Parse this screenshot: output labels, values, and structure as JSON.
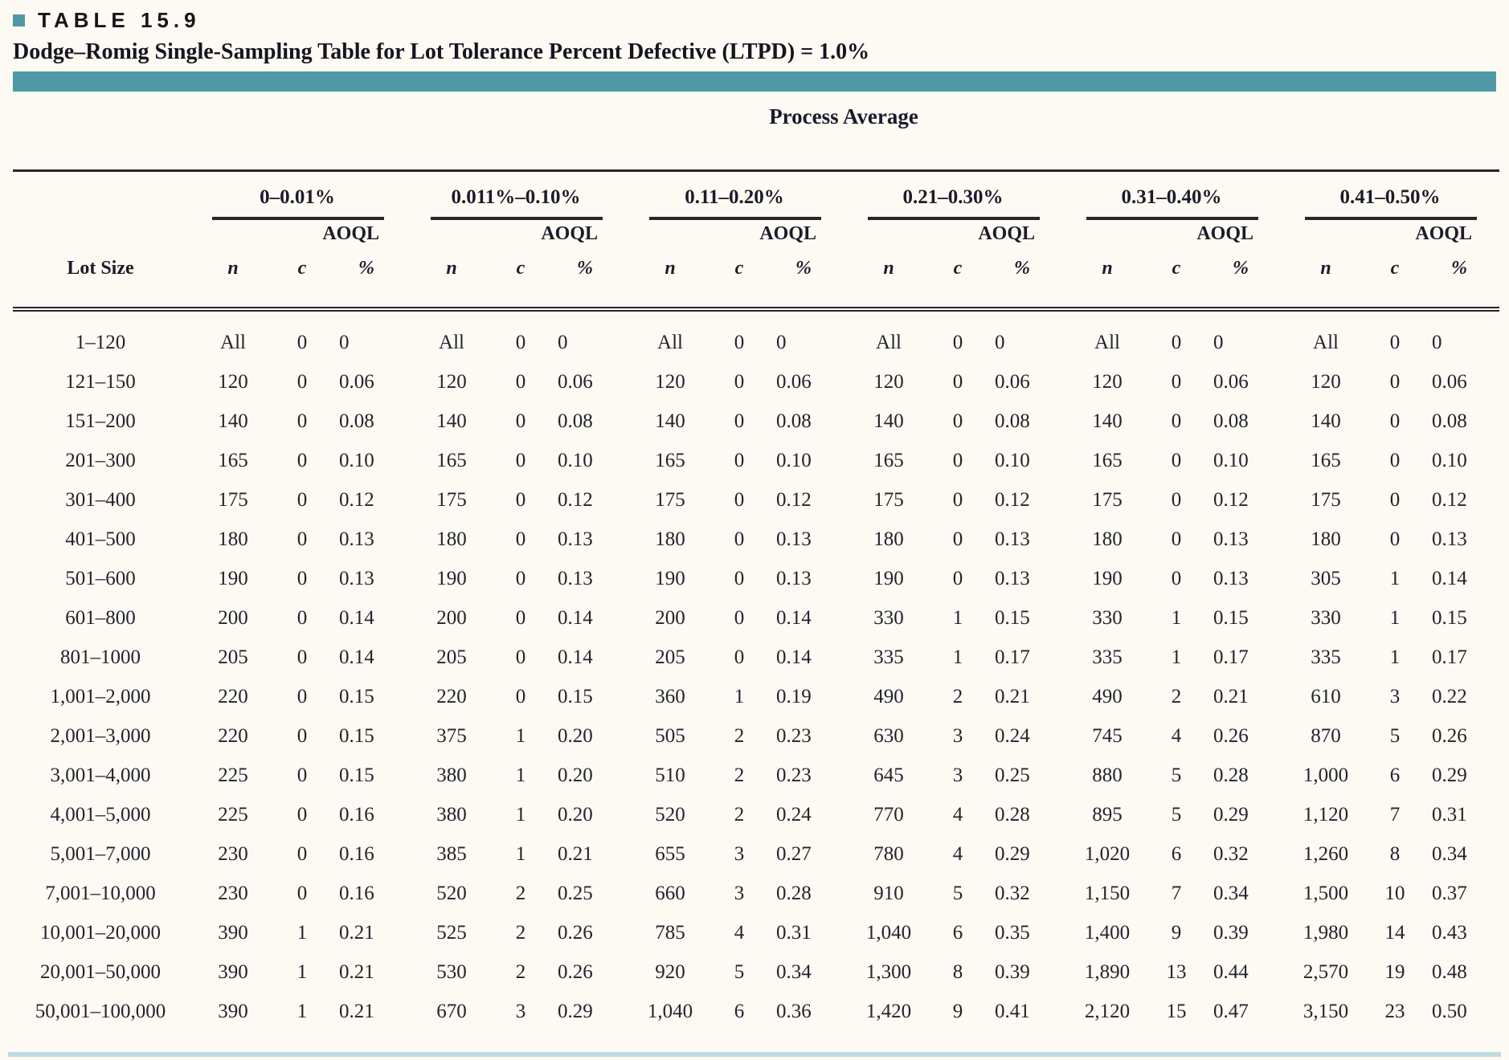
{
  "page": {
    "table_label": "TABLE 15.9",
    "accent_color": "#4f99a6",
    "bottom_rule_color": "#bcdce1"
  },
  "chart_data": {
    "type": "table",
    "title": "Dodge–Romig Single-Sampling Table for Lot Tolerance Percent Defective (LTPD) = 1.0%",
    "group_header": "Process Average",
    "row_header": "Lot Size",
    "aoql_label": "AOQL",
    "sub_columns": [
      "n",
      "c",
      "%"
    ],
    "process_average_ranges": [
      "0–0.01%",
      "0.011%–0.10%",
      "0.11–0.20%",
      "0.21–0.30%",
      "0.31–0.40%",
      "0.41–0.50%"
    ],
    "rows": [
      {
        "lot_size": "1–120",
        "cells": [
          [
            "All",
            "0",
            "0"
          ],
          [
            "All",
            "0",
            "0"
          ],
          [
            "All",
            "0",
            "0"
          ],
          [
            "All",
            "0",
            "0"
          ],
          [
            "All",
            "0",
            "0"
          ],
          [
            "All",
            "0",
            "0"
          ]
        ]
      },
      {
        "lot_size": "121–150",
        "cells": [
          [
            "120",
            "0",
            "0.06"
          ],
          [
            "120",
            "0",
            "0.06"
          ],
          [
            "120",
            "0",
            "0.06"
          ],
          [
            "120",
            "0",
            "0.06"
          ],
          [
            "120",
            "0",
            "0.06"
          ],
          [
            "120",
            "0",
            "0.06"
          ]
        ]
      },
      {
        "lot_size": "151–200",
        "cells": [
          [
            "140",
            "0",
            "0.08"
          ],
          [
            "140",
            "0",
            "0.08"
          ],
          [
            "140",
            "0",
            "0.08"
          ],
          [
            "140",
            "0",
            "0.08"
          ],
          [
            "140",
            "0",
            "0.08"
          ],
          [
            "140",
            "0",
            "0.08"
          ]
        ]
      },
      {
        "lot_size": "201–300",
        "cells": [
          [
            "165",
            "0",
            "0.10"
          ],
          [
            "165",
            "0",
            "0.10"
          ],
          [
            "165",
            "0",
            "0.10"
          ],
          [
            "165",
            "0",
            "0.10"
          ],
          [
            "165",
            "0",
            "0.10"
          ],
          [
            "165",
            "0",
            "0.10"
          ]
        ]
      },
      {
        "lot_size": "301–400",
        "cells": [
          [
            "175",
            "0",
            "0.12"
          ],
          [
            "175",
            "0",
            "0.12"
          ],
          [
            "175",
            "0",
            "0.12"
          ],
          [
            "175",
            "0",
            "0.12"
          ],
          [
            "175",
            "0",
            "0.12"
          ],
          [
            "175",
            "0",
            "0.12"
          ]
        ]
      },
      {
        "lot_size": "401–500",
        "cells": [
          [
            "180",
            "0",
            "0.13"
          ],
          [
            "180",
            "0",
            "0.13"
          ],
          [
            "180",
            "0",
            "0.13"
          ],
          [
            "180",
            "0",
            "0.13"
          ],
          [
            "180",
            "0",
            "0.13"
          ],
          [
            "180",
            "0",
            "0.13"
          ]
        ]
      },
      {
        "lot_size": "501–600",
        "cells": [
          [
            "190",
            "0",
            "0.13"
          ],
          [
            "190",
            "0",
            "0.13"
          ],
          [
            "190",
            "0",
            "0.13"
          ],
          [
            "190",
            "0",
            "0.13"
          ],
          [
            "190",
            "0",
            "0.13"
          ],
          [
            "305",
            "1",
            "0.14"
          ]
        ]
      },
      {
        "lot_size": "601–800",
        "cells": [
          [
            "200",
            "0",
            "0.14"
          ],
          [
            "200",
            "0",
            "0.14"
          ],
          [
            "200",
            "0",
            "0.14"
          ],
          [
            "330",
            "1",
            "0.15"
          ],
          [
            "330",
            "1",
            "0.15"
          ],
          [
            "330",
            "1",
            "0.15"
          ]
        ]
      },
      {
        "lot_size": "801–1000",
        "cells": [
          [
            "205",
            "0",
            "0.14"
          ],
          [
            "205",
            "0",
            "0.14"
          ],
          [
            "205",
            "0",
            "0.14"
          ],
          [
            "335",
            "1",
            "0.17"
          ],
          [
            "335",
            "1",
            "0.17"
          ],
          [
            "335",
            "1",
            "0.17"
          ]
        ]
      },
      {
        "lot_size": "1,001–2,000",
        "cells": [
          [
            "220",
            "0",
            "0.15"
          ],
          [
            "220",
            "0",
            "0.15"
          ],
          [
            "360",
            "1",
            "0.19"
          ],
          [
            "490",
            "2",
            "0.21"
          ],
          [
            "490",
            "2",
            "0.21"
          ],
          [
            "610",
            "3",
            "0.22"
          ]
        ]
      },
      {
        "lot_size": "2,001–3,000",
        "cells": [
          [
            "220",
            "0",
            "0.15"
          ],
          [
            "375",
            "1",
            "0.20"
          ],
          [
            "505",
            "2",
            "0.23"
          ],
          [
            "630",
            "3",
            "0.24"
          ],
          [
            "745",
            "4",
            "0.26"
          ],
          [
            "870",
            "5",
            "0.26"
          ]
        ]
      },
      {
        "lot_size": "3,001–4,000",
        "cells": [
          [
            "225",
            "0",
            "0.15"
          ],
          [
            "380",
            "1",
            "0.20"
          ],
          [
            "510",
            "2",
            "0.23"
          ],
          [
            "645",
            "3",
            "0.25"
          ],
          [
            "880",
            "5",
            "0.28"
          ],
          [
            "1,000",
            "6",
            "0.29"
          ]
        ]
      },
      {
        "lot_size": "4,001–5,000",
        "cells": [
          [
            "225",
            "0",
            "0.16"
          ],
          [
            "380",
            "1",
            "0.20"
          ],
          [
            "520",
            "2",
            "0.24"
          ],
          [
            "770",
            "4",
            "0.28"
          ],
          [
            "895",
            "5",
            "0.29"
          ],
          [
            "1,120",
            "7",
            "0.31"
          ]
        ]
      },
      {
        "lot_size": "5,001–7,000",
        "cells": [
          [
            "230",
            "0",
            "0.16"
          ],
          [
            "385",
            "1",
            "0.21"
          ],
          [
            "655",
            "3",
            "0.27"
          ],
          [
            "780",
            "4",
            "0.29"
          ],
          [
            "1,020",
            "6",
            "0.32"
          ],
          [
            "1,260",
            "8",
            "0.34"
          ]
        ]
      },
      {
        "lot_size": "7,001–10,000",
        "cells": [
          [
            "230",
            "0",
            "0.16"
          ],
          [
            "520",
            "2",
            "0.25"
          ],
          [
            "660",
            "3",
            "0.28"
          ],
          [
            "910",
            "5",
            "0.32"
          ],
          [
            "1,150",
            "7",
            "0.34"
          ],
          [
            "1,500",
            "10",
            "0.37"
          ]
        ]
      },
      {
        "lot_size": "10,001–20,000",
        "cells": [
          [
            "390",
            "1",
            "0.21"
          ],
          [
            "525",
            "2",
            "0.26"
          ],
          [
            "785",
            "4",
            "0.31"
          ],
          [
            "1,040",
            "6",
            "0.35"
          ],
          [
            "1,400",
            "9",
            "0.39"
          ],
          [
            "1,980",
            "14",
            "0.43"
          ]
        ]
      },
      {
        "lot_size": "20,001–50,000",
        "cells": [
          [
            "390",
            "1",
            "0.21"
          ],
          [
            "530",
            "2",
            "0.26"
          ],
          [
            "920",
            "5",
            "0.34"
          ],
          [
            "1,300",
            "8",
            "0.39"
          ],
          [
            "1,890",
            "13",
            "0.44"
          ],
          [
            "2,570",
            "19",
            "0.48"
          ]
        ]
      },
      {
        "lot_size": "50,001–100,000",
        "cells": [
          [
            "390",
            "1",
            "0.21"
          ],
          [
            "670",
            "3",
            "0.29"
          ],
          [
            "1,040",
            "6",
            "0.36"
          ],
          [
            "1,420",
            "9",
            "0.41"
          ],
          [
            "2,120",
            "15",
            "0.47"
          ],
          [
            "3,150",
            "23",
            "0.50"
          ]
        ]
      }
    ]
  }
}
